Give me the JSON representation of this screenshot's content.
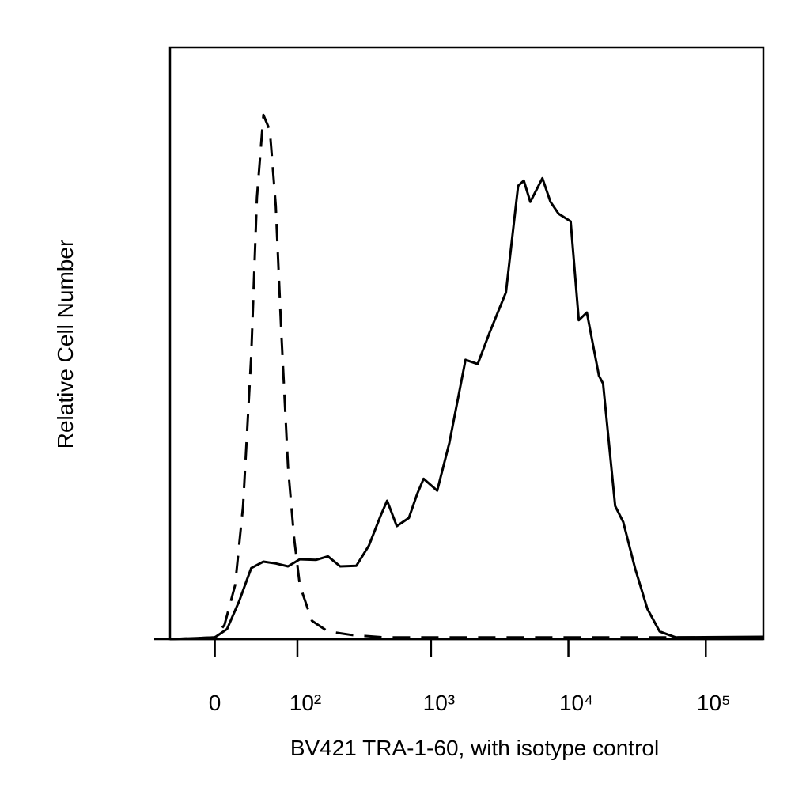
{
  "chart_data": {
    "type": "line",
    "y_label": "Relative Cell Number",
    "x_label": "BV421 TRA-1-60, with isotype control",
    "x_scale": "biexponential",
    "xlim": [
      -44,
      262144
    ],
    "xticks": [
      0,
      {
        "value": 100,
        "label": "10²"
      },
      {
        "value": 1000,
        "label": "10³"
      },
      {
        "value": 10000,
        "label": "10⁴"
      },
      {
        "value": 100000,
        "label": "10⁵"
      }
    ],
    "ylim": [
      0,
      100
    ],
    "series": [
      {
        "color": "#000000",
        "dash": false,
        "x": [
          -44,
          0,
          11,
          22.4,
          34.7,
          48.5,
          64.6,
          83.3,
          104.6,
          140.7,
          174,
          215,
          284,
          351,
          429,
          478,
          563,
          690,
          792,
          883,
          1109,
          1361,
          1783,
          2187,
          2680,
          3514,
          4308,
          4736,
          5280,
          6468,
          7404,
          8480,
          10390,
          11900,
          13630,
          16690,
          17870,
          21900,
          25080,
          30700,
          37600,
          46100,
          60500,
          262144
        ],
        "values": [
          0,
          0.3,
          1.7,
          6.4,
          12.0,
          13.1,
          12.8,
          12.3,
          13.5,
          13.4,
          14.0,
          12.3,
          12.4,
          15.8,
          20.9,
          23.4,
          19.1,
          20.5,
          24.5,
          27.1,
          25.1,
          33.2,
          47.2,
          46.5,
          51.9,
          58.6,
          76.6,
          77.5,
          73.9,
          77.9,
          73.9,
          71.9,
          70.6,
          53.9,
          55.2,
          44.5,
          43.2,
          22.5,
          19.8,
          11.8,
          5.1,
          1.3,
          0.3,
          0.4
        ]
      },
      {
        "color": "#000000",
        "dash": true,
        "x": [
          -44,
          0,
          8.7,
          18.5,
          26.3,
          34.7,
          40.9,
          48.5,
          56.6,
          64.6,
          72.7,
          83.3,
          93.9,
          104.6,
          130.7,
          174,
          265,
          459,
          262144
        ],
        "values": [
          0,
          0.3,
          2.4,
          9.1,
          22.5,
          47.9,
          74.6,
          88.6,
          86.0,
          73.3,
          51.9,
          29.1,
          17.1,
          9.1,
          3.1,
          1.3,
          0.7,
          0.3,
          0.3
        ]
      }
    ]
  }
}
